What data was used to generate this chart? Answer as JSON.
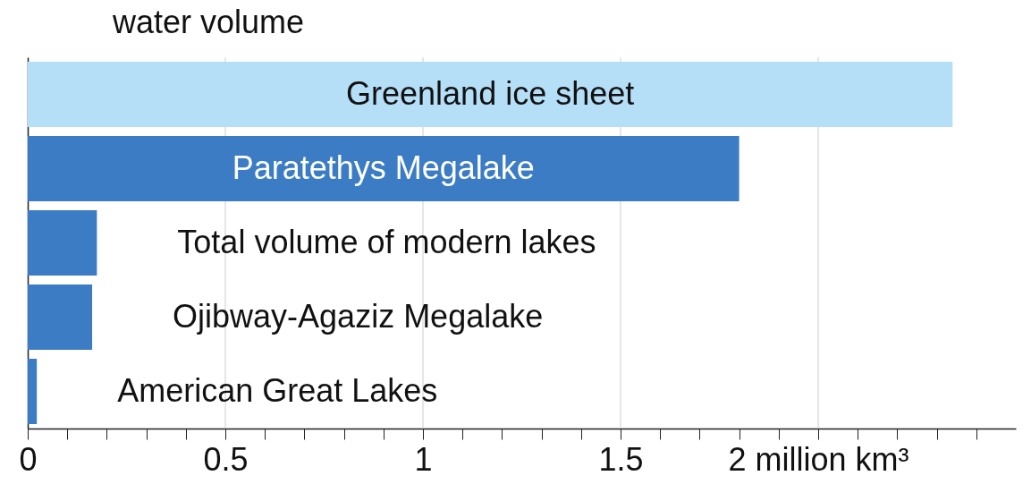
{
  "chart_data": {
    "type": "bar",
    "orientation": "horizontal",
    "title": "water volume",
    "categories": [
      "Greenland ice sheet",
      "Paratethys Megalake",
      "Total volume of modern lakes",
      "Ojibway-Agaziz Megalake",
      "American Great Lakes"
    ],
    "values": [
      2.34,
      1.8,
      0.175,
      0.163,
      0.023
    ],
    "colors": [
      "#b5def7",
      "#3b7cc4",
      "#3b7cc4",
      "#3b7cc4",
      "#3b7cc4"
    ],
    "xlim": [
      0,
      2.5
    ],
    "xticks": [
      0,
      {
        "value": 0.1,
        "label": null
      },
      {
        "value": 0.2,
        "label": null
      },
      {
        "value": 0.3,
        "label": null
      },
      {
        "value": 0.4,
        "label": null
      },
      0.5,
      {
        "value": 0.6,
        "label": null
      },
      {
        "value": 0.7,
        "label": null
      },
      {
        "value": 0.8,
        "label": null
      },
      {
        "value": 0.9,
        "label": null
      },
      1,
      {
        "value": 1.1,
        "label": null
      },
      {
        "value": 1.2,
        "label": null
      },
      {
        "value": 1.3,
        "label": null
      },
      {
        "value": 1.4,
        "label": null
      },
      1.5,
      {
        "value": 1.6,
        "label": null
      },
      {
        "value": 1.7,
        "label": null
      },
      {
        "value": 1.8,
        "label": null
      },
      {
        "value": 1.9,
        "label": null
      },
      {
        "value": 2,
        "label": "2 million km³"
      },
      {
        "value": 2.1,
        "label": null
      },
      {
        "value": 2.2,
        "label": null
      },
      {
        "value": 2.3,
        "label": null
      },
      {
        "value": 2.4,
        "label": null
      }
    ],
    "grid": "x",
    "tick_labels": "x"
  }
}
